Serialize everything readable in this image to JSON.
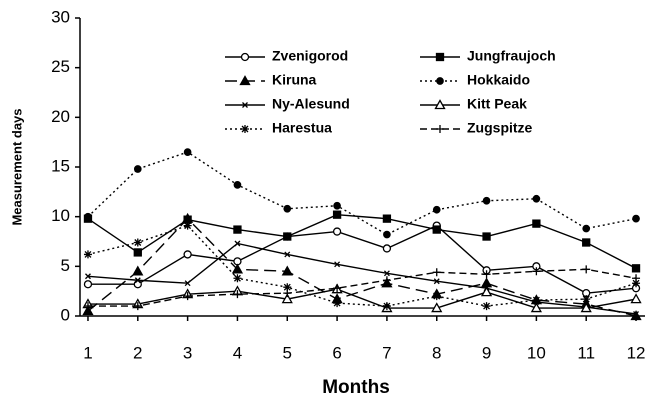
{
  "chart_data": {
    "type": "line",
    "x_label": "Months",
    "y_label": "Measurement days",
    "x": [
      1,
      2,
      3,
      4,
      5,
      6,
      7,
      8,
      9,
      10,
      11,
      12
    ],
    "xlim": [
      0.84,
      12.18
    ],
    "xticks": [
      1,
      2,
      3,
      4,
      5,
      6,
      7,
      8,
      9,
      10,
      11,
      12
    ],
    "ylim": [
      0,
      30
    ],
    "yticks": [
      0,
      5,
      10,
      15,
      20,
      25,
      30
    ],
    "grid": false,
    "legend": "top",
    "series": [
      {
        "name": "Zvenigorod",
        "color": "#000000",
        "marker": "circle-open",
        "dash": "solid",
        "values": [
          3.2,
          3.2,
          6.2,
          5.5,
          8,
          8.5,
          6.8,
          9.1,
          4.6,
          5,
          2.3,
          2.8
        ]
      },
      {
        "name": "Jungfraujoch",
        "color": "#000000",
        "marker": "square",
        "dash": "solid",
        "values": [
          9.8,
          6.4,
          9.7,
          8.7,
          8,
          10.2,
          9.8,
          8.7,
          8,
          9.3,
          7.4,
          4.8
        ]
      },
      {
        "name": "Kiruna",
        "color": "#000000",
        "marker": "triangle",
        "dash": "long",
        "values": [
          0.5,
          4.5,
          9.8,
          4.7,
          4.5,
          1.7,
          3.3,
          2.2,
          3.3,
          1.6,
          1.2,
          0
        ]
      },
      {
        "name": "Hokkaido",
        "color": "#000000",
        "marker": "circle",
        "dash": "dot",
        "values": [
          10,
          14.8,
          16.5,
          13.2,
          10.8,
          11.1,
          8.2,
          10.7,
          11.6,
          11.8,
          8.8,
          9.8
        ]
      },
      {
        "name": "Ny-Alesund",
        "color": "#000000",
        "marker": "x",
        "dash": "solid",
        "values": [
          4,
          3.6,
          3.3,
          7.3,
          6.2,
          5.2,
          4.3,
          3.5,
          2.8,
          1.4,
          0.9,
          0.2
        ]
      },
      {
        "name": "Kitt Peak",
        "color": "#000000",
        "marker": "triangle-open",
        "dash": "solid",
        "values": [
          1.2,
          1.2,
          2.2,
          2.5,
          1.7,
          2.7,
          0.8,
          0.8,
          2.4,
          0.8,
          0.8,
          1.7
        ]
      },
      {
        "name": "Harestua",
        "color": "#000000",
        "marker": "asterisk",
        "dash": "dot",
        "values": [
          6.2,
          7.4,
          9.1,
          3.8,
          2.9,
          1.3,
          1,
          2,
          1,
          1.6,
          1.7,
          3.3
        ]
      },
      {
        "name": "Zugspitze",
        "color": "#000000",
        "marker": "plus",
        "dash": "dash",
        "values": [
          1,
          1,
          2,
          2.2,
          2.3,
          2.8,
          3.6,
          4.4,
          4.2,
          4.5,
          4.7,
          3.8
        ]
      }
    ]
  }
}
